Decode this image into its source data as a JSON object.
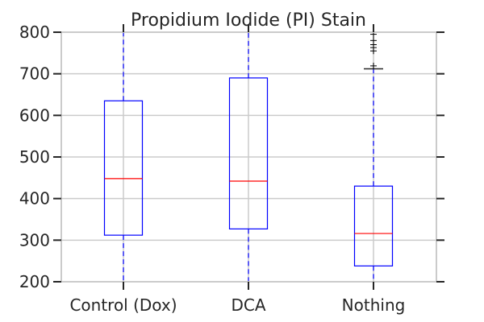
{
  "chart_data": {
    "type": "box",
    "title": "Propidium Iodide (PI) Stain",
    "xlabel": "",
    "ylabel": "",
    "categories": [
      "Control (Dox)",
      "DCA",
      "Nothing"
    ],
    "ylim": [
      200,
      800
    ],
    "yticks": [
      200,
      300,
      400,
      500,
      600,
      700,
      800
    ],
    "grid": true,
    "boxes": [
      {
        "category": "Control (Dox)",
        "q1": 312,
        "median": 448,
        "q3": 635,
        "whisker_low": 200,
        "whisker_high": 800,
        "outliers": []
      },
      {
        "category": "DCA",
        "q1": 327,
        "median": 442,
        "q3": 690,
        "whisker_low": 200,
        "whisker_high": 800,
        "outliers": []
      },
      {
        "category": "Nothing",
        "q1": 238,
        "median": 316,
        "q3": 430,
        "whisker_low": 200,
        "whisker_high": 712,
        "outliers": [
          719,
          755,
          763,
          770,
          780,
          795
        ]
      }
    ],
    "colors": {
      "box": "#0000ff",
      "median": "#ff0000",
      "whisker": "#0000ff",
      "grid": "#cbcbcb",
      "axes": "#cbcbcb",
      "ticks": "#262626",
      "outlier": "#000000"
    }
  }
}
